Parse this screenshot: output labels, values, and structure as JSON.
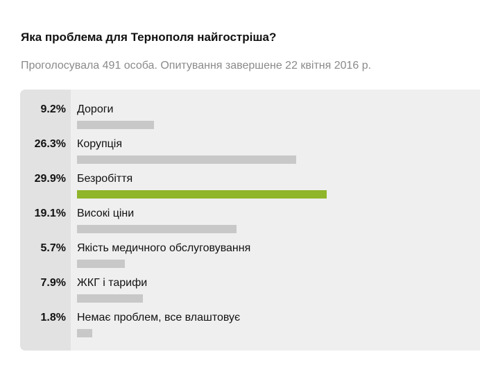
{
  "poll": {
    "title": "Яка проблема для Тернополя найгостріша?",
    "subtitle": "Проголосувала 491 особа. Опитування завершене 22 квітня 2016 р."
  },
  "colors": {
    "bar_default": "#c8c8c8",
    "bar_leader": "#8fb52a",
    "panel_percent_bg": "#e2e2e2",
    "panel_label_bg": "#efefef"
  },
  "chart_data": {
    "type": "bar",
    "orientation": "horizontal",
    "title": "Яка проблема для Тернополя найгостріша?",
    "subtitle": "Проголосувала 491 особа. Опитування завершене 22 квітня 2016 р.",
    "categories": [
      "Дороги",
      "Корупція",
      "Безробіття",
      "Високі ціни",
      "Якість медичного обслуговування",
      "ЖКГ і тарифи",
      "Немає проблем, все влаштовує"
    ],
    "values": [
      9.2,
      26.3,
      29.9,
      19.1,
      5.7,
      7.9,
      1.8
    ],
    "value_labels": [
      "9.2%",
      "26.3%",
      "29.9%",
      "19.1%",
      "5.7%",
      "7.9%",
      "1.8%"
    ],
    "unit": "%",
    "highlighted_category": "Безробіття",
    "grid": false,
    "legend": "none"
  }
}
